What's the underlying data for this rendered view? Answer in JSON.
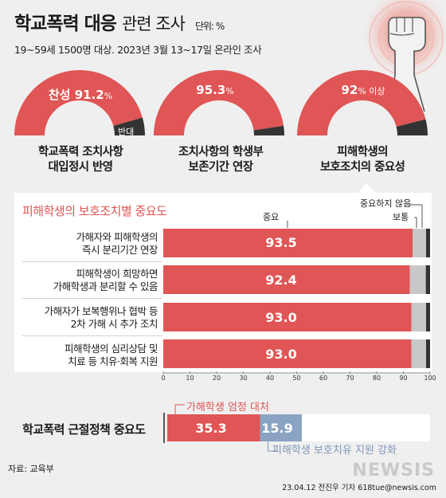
{
  "header": {
    "title_main": "학교폭력 대응",
    "title_sub": "관련 조사",
    "unit": "단위: %",
    "subtitle": "19~59세 1500명 대상. 2023년 3월 13~17일 온라인 조사"
  },
  "colors": {
    "accent": "#e05555",
    "dark": "#333333",
    "gray": "#c8c8c8",
    "blue": "#8aa3c2",
    "dark_bar": "#555555"
  },
  "chart_data": [
    {
      "type": "pie",
      "gauges": [
        {
          "label_line1": "학교폭력 조치사항",
          "label_line2": "대입정시 반영",
          "value": 91.2,
          "value_prefix": "찬성",
          "value_text": "91.2",
          "value_suffix": "%",
          "remainder_label": "반대"
        },
        {
          "label_line1": "조치사항의 학생부",
          "label_line2": "보존기간 연장",
          "value": 95.3,
          "value_prefix": "",
          "value_text": "95.3",
          "value_suffix": "%",
          "remainder_label": ""
        },
        {
          "label_line1": "피해학생의",
          "label_line2": "보호조치의 중요성",
          "value": 92,
          "value_prefix": "",
          "value_text": "92",
          "value_suffix": "% 이상",
          "remainder_label": ""
        }
      ]
    },
    {
      "type": "bar",
      "title": "피해학생의 보호조치별 중요도",
      "legend": {
        "important": "중요",
        "normal": "보통",
        "not_important": "중요하지 않음"
      },
      "xlim": [
        0,
        100
      ],
      "ticks": [
        "0",
        "10",
        "20",
        "30",
        "40",
        "50",
        "60",
        "70",
        "80",
        "90",
        "100"
      ],
      "categories": [
        [
          "가해자와 피해학생의",
          "즉시 분리기간 연장"
        ],
        [
          "피해학생이 희망하면",
          "가해학생과 분리할 수 있음"
        ],
        [
          "가해자가 보복행위나 협박 등",
          "2차 가해 시 추가 조치"
        ],
        [
          "피해학생의 심리상담 및",
          "치료 등 치유·회복 지원"
        ]
      ],
      "series": [
        {
          "name": "중요",
          "values": [
            93.5,
            92.4,
            93.0,
            93.0
          ],
          "labels": [
            "93.5",
            "92.4",
            "93.0",
            "93.0"
          ]
        },
        {
          "name": "보통",
          "values": [
            5.0,
            6.0,
            5.5,
            5.5
          ]
        },
        {
          "name": "중요하지 않음",
          "values": [
            1.5,
            1.6,
            1.5,
            1.5
          ]
        }
      ]
    },
    {
      "type": "bar",
      "label": "학교폭력 근절정책 중요도",
      "series": [
        {
          "name": "가해학생 엄정 대처",
          "value": 35.3,
          "label": "35.3"
        },
        {
          "name": "피해학생 보호치유 지원 강화",
          "value": 15.9,
          "label": "15.9"
        }
      ]
    }
  ],
  "footer": {
    "source": "자료: 교육부",
    "credit": "23.04.12 전진우 기자 618tue@newsis.com",
    "watermark": "NEWSIS"
  }
}
